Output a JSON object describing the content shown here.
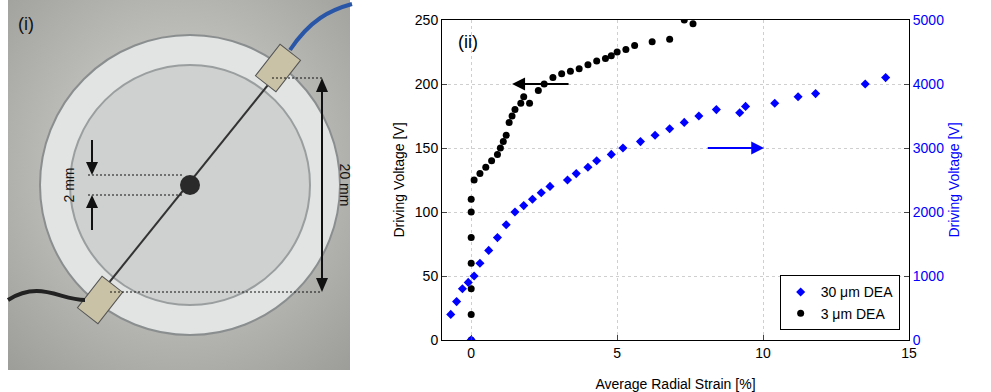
{
  "photo": {
    "label": "(i)",
    "dot_size": "2 mm",
    "ring_size": "20 mm"
  },
  "chart_data": {
    "type": "scatter",
    "annotations": [
      {
        "text": "(ii)"
      }
    ],
    "x_label": "Average Radial Strain [%]",
    "y_label": "Driving Voltage [V]",
    "y2_label": "Driving Voltage [V]",
    "xlim": [
      -1,
      15
    ],
    "xticks": [
      0,
      5,
      10,
      15
    ],
    "ylim": [
      0,
      250
    ],
    "yticks": [
      0,
      50,
      100,
      150,
      200,
      250
    ],
    "y2lim": [
      0,
      5000
    ],
    "y2ticks": [
      0,
      1000,
      2000,
      3000,
      4000,
      5000
    ],
    "grid": true,
    "legend": "lower right",
    "series": [
      {
        "name": "30 μm DEA",
        "color": "#0000ff",
        "marker": "diamond",
        "axis": "y2",
        "x": [
          0,
          -0.7,
          -0.5,
          -0.3,
          -0.1,
          0.1,
          0.3,
          0.6,
          0.9,
          1.2,
          1.5,
          1.8,
          2.1,
          2.4,
          2.7,
          3.3,
          3.6,
          4.0,
          4.3,
          4.8,
          5.2,
          5.8,
          6.3,
          6.8,
          7.3,
          7.8,
          8.4,
          9.2,
          9.4,
          10.4,
          11.2,
          11.8,
          13.5,
          14.2
        ],
        "values": [
          0,
          400,
          600,
          800,
          900,
          1000,
          1200,
          1400,
          1600,
          1800,
          2000,
          2100,
          2200,
          2300,
          2400,
          2500,
          2600,
          2700,
          2800,
          2900,
          3000,
          3100,
          3200,
          3300,
          3400,
          3500,
          3600,
          3550,
          3650,
          3700,
          3800,
          3850,
          4000,
          4100
        ]
      },
      {
        "name": "3 μm DEA",
        "color": "#000000",
        "marker": "circle",
        "axis": "y",
        "x": [
          0,
          0,
          0,
          0,
          0,
          0,
          0,
          0.1,
          0.3,
          0.5,
          0.7,
          0.9,
          1.0,
          1.1,
          1.2,
          1.3,
          1.4,
          1.5,
          1.7,
          1.8,
          2.0,
          2.3,
          2.5,
          2.8,
          3.1,
          3.4,
          3.7,
          4.0,
          4.3,
          4.6,
          4.8,
          5.0,
          5.3,
          5.6,
          6.2,
          6.8,
          7.3,
          7.6
        ],
        "values": [
          0,
          20,
          40,
          60,
          80,
          100,
          110,
          125,
          130,
          135,
          140,
          145,
          150,
          155,
          160,
          170,
          175,
          180,
          185,
          190,
          185,
          195,
          200,
          205,
          208,
          210,
          212,
          215,
          218,
          220,
          222,
          225,
          227,
          230,
          233,
          235,
          250,
          247
        ]
      }
    ]
  }
}
